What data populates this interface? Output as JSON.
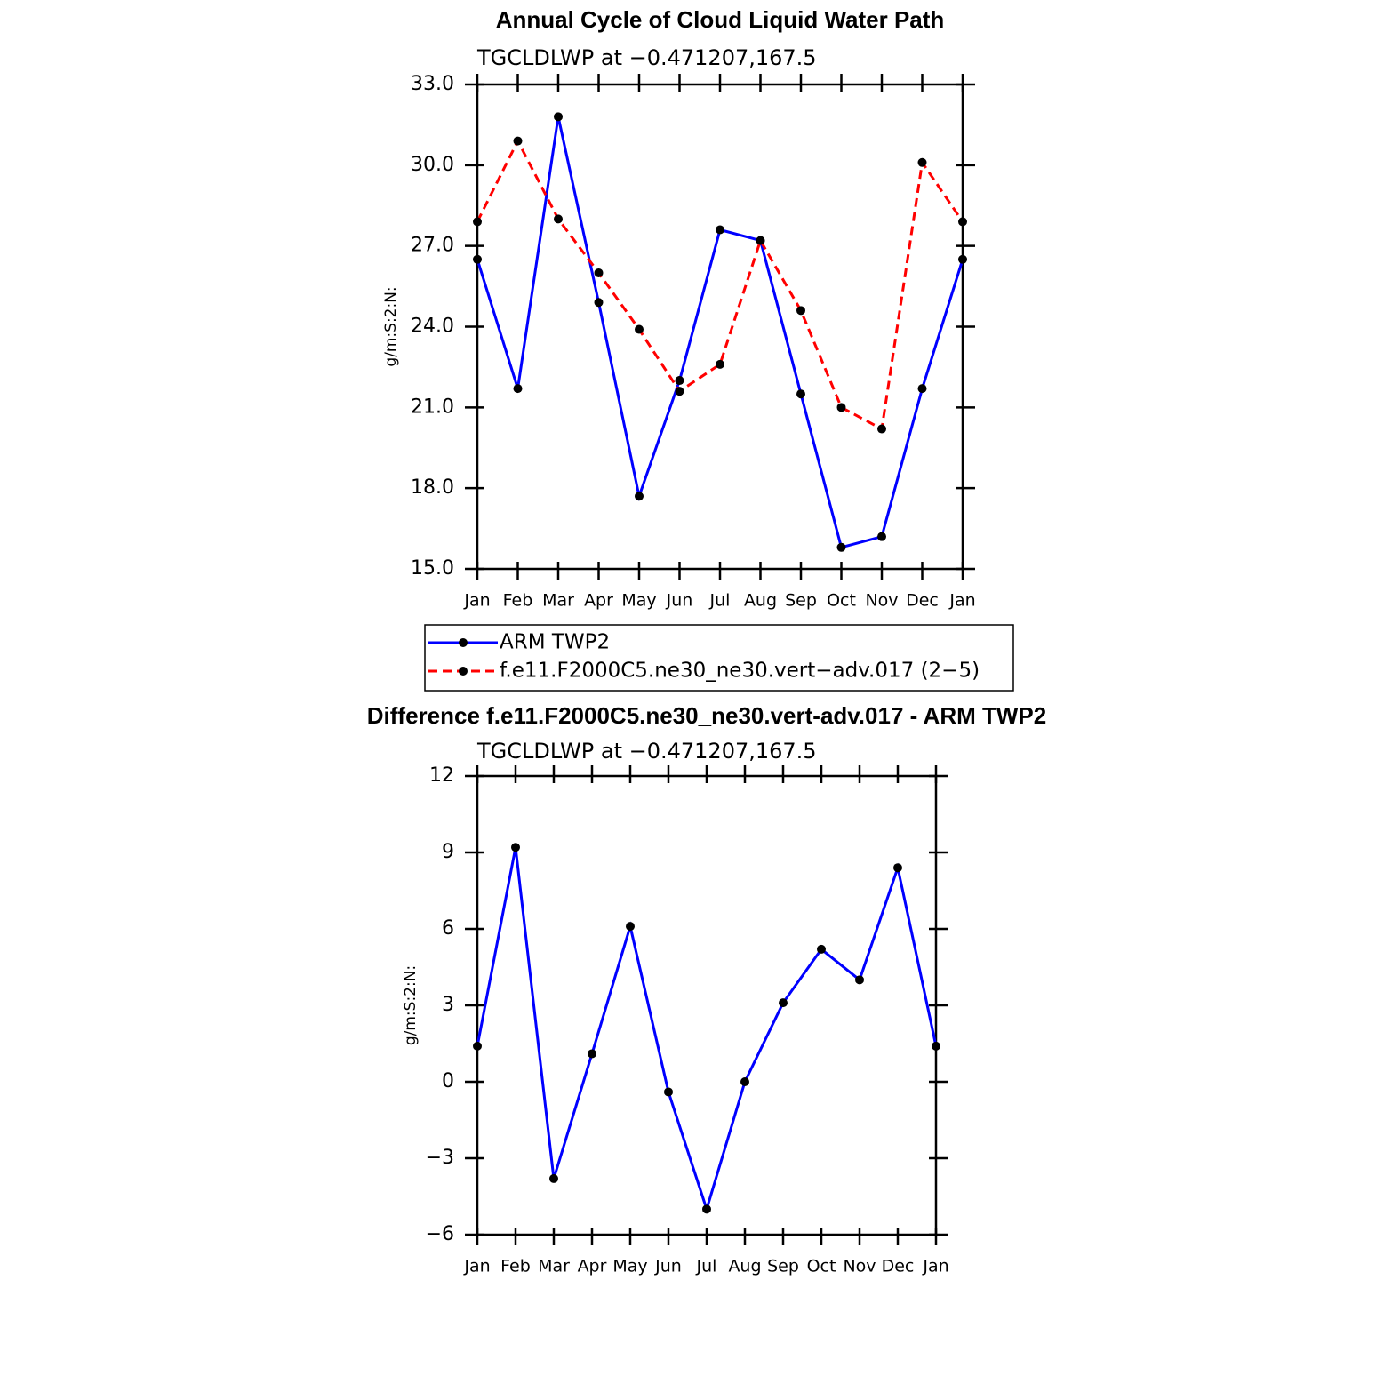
{
  "chart_data": [
    {
      "type": "line",
      "title": "Annual Cycle of Cloud Liquid Water Path",
      "subtitle": "TGCLDLWP  at  −0.471207,167.5",
      "y_label": "g/m:S:2:N:",
      "categories": [
        "Jan",
        "Feb",
        "Mar",
        "Apr",
        "May",
        "Jun",
        "Jul",
        "Aug",
        "Sep",
        "Oct",
        "Nov",
        "Dec",
        "Jan"
      ],
      "series": [
        {
          "name": "ARM TWP2",
          "color": "#0000ff",
          "dashed": false,
          "values": [
            26.5,
            21.7,
            31.8,
            24.9,
            17.7,
            22.0,
            27.6,
            27.2,
            21.5,
            15.8,
            16.2,
            21.7,
            26.5
          ]
        },
        {
          "name": "f.e11.F2000C5.ne30_ne30.vert−adv.017 (2−5)",
          "color": "#ff0000",
          "dashed": true,
          "values": [
            27.9,
            30.9,
            28.0,
            26.0,
            23.9,
            21.6,
            22.6,
            27.2,
            24.6,
            21.0,
            20.2,
            30.1,
            27.9
          ]
        }
      ],
      "ylim": [
        15,
        33
      ],
      "yticks": [
        {
          "value": 15,
          "label": "15.0"
        },
        {
          "value": 18,
          "label": "18.0"
        },
        {
          "value": 21,
          "label": "21.0"
        },
        {
          "value": 24,
          "label": "24.0"
        },
        {
          "value": 27,
          "label": "27.0"
        },
        {
          "value": 30,
          "label": "30.0"
        },
        {
          "value": 33,
          "label": "33.0"
        }
      ],
      "legend": true,
      "marker_color": "#000000"
    },
    {
      "type": "line",
      "title": "Difference f.e11.F2000C5.ne30_ne30.vert-adv.017 - ARM TWP2",
      "subtitle": "TGCLDLWP  at  −0.471207,167.5",
      "y_label": "g/m:S:2:N:",
      "categories": [
        "Jan",
        "Feb",
        "Mar",
        "Apr",
        "May",
        "Jun",
        "Jul",
        "Aug",
        "Sep",
        "Oct",
        "Nov",
        "Dec",
        "Jan"
      ],
      "color": "#0000ff",
      "values": [
        1.4,
        9.2,
        -3.8,
        1.1,
        6.1,
        -0.4,
        -5.0,
        0.0,
        3.1,
        5.2,
        4.0,
        8.4,
        1.4
      ],
      "ylim": [
        -6,
        12
      ],
      "yticks": [
        {
          "value": -6,
          "label": "−6"
        },
        {
          "value": -3,
          "label": "−3"
        },
        0,
        3,
        6,
        9,
        12
      ],
      "legend": false,
      "marker_color": "#000000"
    }
  ]
}
